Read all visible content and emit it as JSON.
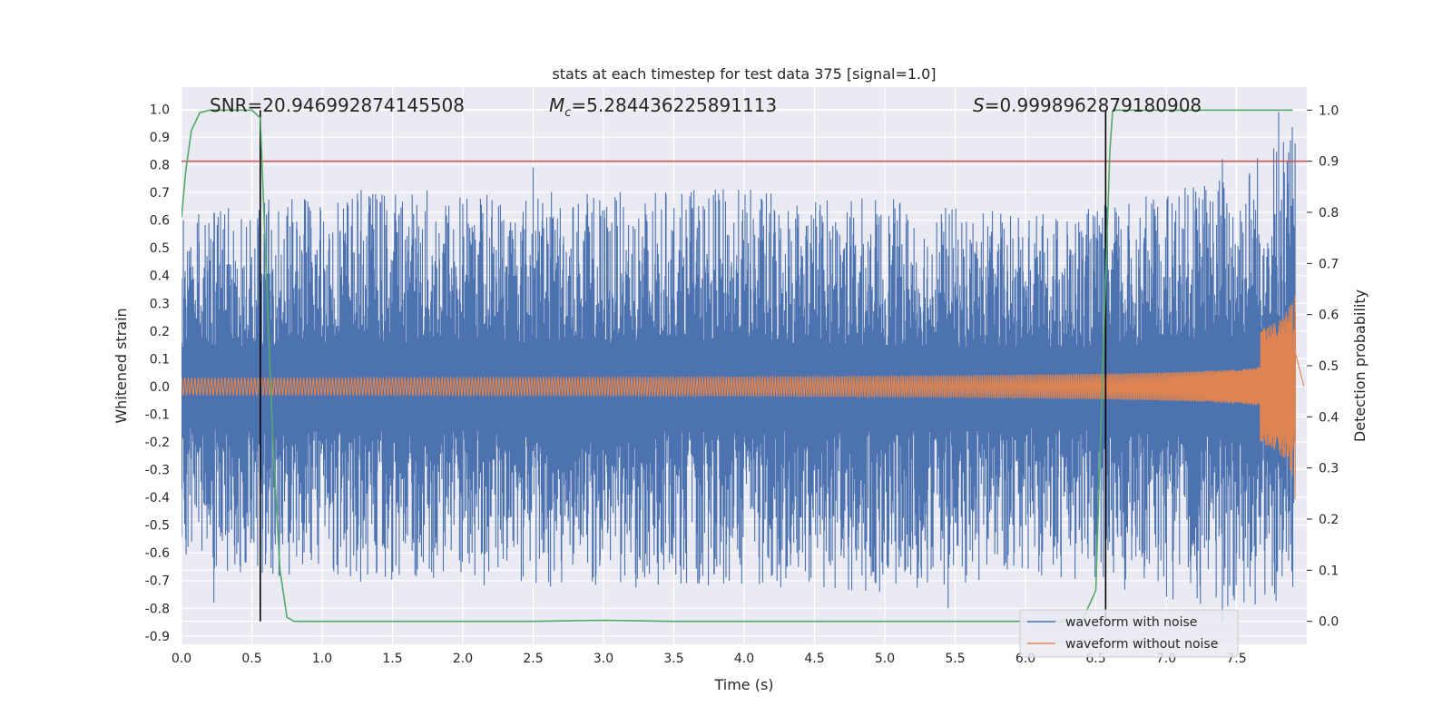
{
  "chart_data": {
    "type": "line",
    "title": "stats at each timestep for test data 375 [signal=1.0]",
    "xlabel": "Time (s)",
    "ylabel": "Whitened strain",
    "y2label": "Detection probability",
    "xlim": [
      0.0,
      8.0
    ],
    "ylim": [
      -0.93,
      1.08
    ],
    "y2lim": [
      -0.045,
      1.045
    ],
    "x_ticks": [
      "0.0",
      "0.5",
      "1.0",
      "1.5",
      "2.0",
      "2.5",
      "3.0",
      "3.5",
      "4.0",
      "4.5",
      "5.0",
      "5.5",
      "6.0",
      "6.5",
      "7.0",
      "7.5"
    ],
    "y_ticks": [
      "-0.9",
      "-0.8",
      "-0.7",
      "-0.6",
      "-0.5",
      "-0.4",
      "-0.3",
      "-0.2",
      "-0.1",
      "0.0",
      "0.1",
      "0.2",
      "0.3",
      "0.4",
      "0.5",
      "0.6",
      "0.7",
      "0.8",
      "0.9",
      "1.0"
    ],
    "y2_ticks": [
      "0.0",
      "0.1",
      "0.2",
      "0.3",
      "0.4",
      "0.5",
      "0.6",
      "0.7",
      "0.8",
      "0.9",
      "1.0"
    ],
    "grid": true,
    "legend_position": "bottom-right",
    "annotations": {
      "snr": "SNR=20.946992874145508",
      "mc_symbol": "M",
      "mc_subscript": "c",
      "mc_value": "=5.284436225891113",
      "s_symbol": "S",
      "s_value": "=0.9998962879180908"
    },
    "threshold_line": {
      "axis": "y2",
      "value": 0.9,
      "color": "#c44e52"
    },
    "vertical_lines": [
      0.56,
      6.57
    ],
    "series": [
      {
        "name": "waveform with noise",
        "axis": "y",
        "color": "#4c72b0",
        "kind": "noise",
        "envelope": {
          "t": [
            0.0,
            1.0,
            2.0,
            3.0,
            4.0,
            5.0,
            6.0,
            6.5,
            7.0,
            7.5,
            7.9
          ],
          "max": [
            0.62,
            0.72,
            0.72,
            0.7,
            0.72,
            0.68,
            0.62,
            0.65,
            0.7,
            0.8,
            0.99
          ],
          "min": [
            -0.65,
            -0.7,
            -0.72,
            -0.73,
            -0.72,
            -0.75,
            -0.68,
            -0.7,
            -0.78,
            -0.82,
            -0.76
          ]
        },
        "notable_peaks": [
          [
            0.23,
            -0.78
          ],
          [
            2.5,
            0.79
          ],
          [
            7.4,
            0.82
          ],
          [
            7.8,
            0.99
          ],
          [
            5.45,
            -0.8
          ],
          [
            7.4,
            -0.85
          ]
        ]
      },
      {
        "name": "waveform without noise",
        "axis": "y",
        "color": "#dd8452",
        "kind": "chirp",
        "start_amplitude": 0.03,
        "end_amplitude": 0.43,
        "end_time": 7.92
      },
      {
        "name": "detection probability",
        "axis": "y2",
        "color": "#55a868",
        "x": [
          0.0,
          0.03,
          0.07,
          0.13,
          0.2,
          0.3,
          0.4,
          0.5,
          0.56,
          0.6,
          0.65,
          0.7,
          0.75,
          0.8,
          0.9,
          1.5,
          2.5,
          3.0,
          3.5,
          5.0,
          6.0,
          6.4,
          6.5,
          6.55,
          6.6,
          6.62,
          6.65,
          6.7,
          7.0,
          7.5,
          7.9
        ],
        "y": [
          0.79,
          0.88,
          0.96,
          0.995,
          1.0,
          1.0,
          1.0,
          1.0,
          0.985,
          0.7,
          0.35,
          0.1,
          0.008,
          0.0,
          0.0,
          0.0,
          0.0,
          0.002,
          0.0,
          0.0,
          0.0,
          0.0,
          0.06,
          0.5,
          0.92,
          1.0,
          1.0,
          1.0,
          1.0,
          1.0,
          1.0
        ]
      }
    ]
  }
}
